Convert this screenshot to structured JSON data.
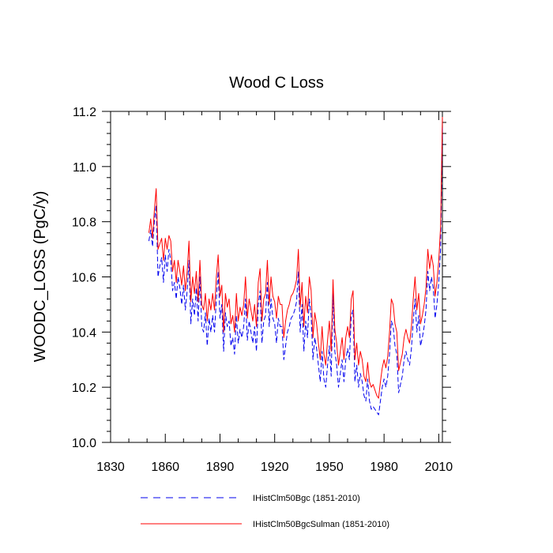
{
  "chart_data": {
    "type": "line",
    "title": "Wood C Loss",
    "ylabel": "WOODC_LOSS  (PgC/y)",
    "xlabel": "",
    "xlim": [
      1830,
      2012
    ],
    "ylim": [
      10.0,
      11.2
    ],
    "x_ticks": [
      "1830",
      "1860",
      "1890",
      "1920",
      "1950",
      "1980",
      "2010"
    ],
    "y_ticks": [
      "10.0",
      "10.2",
      "10.4",
      "10.6",
      "10.8",
      "11.0",
      "11.2"
    ],
    "grid": false,
    "legend_position": "bottom",
    "x_start": 1851,
    "series": [
      {
        "name": "IHistClm50Bgc (1851-2010)",
        "color": "#0000ee",
        "style": "dashed",
        "values": [
          10.73,
          10.77,
          10.71,
          10.8,
          10.86,
          10.6,
          10.64,
          10.67,
          10.58,
          10.68,
          10.62,
          10.7,
          10.66,
          10.55,
          10.58,
          10.52,
          10.6,
          10.56,
          10.5,
          10.57,
          10.48,
          10.55,
          10.66,
          10.43,
          10.52,
          10.46,
          10.56,
          10.44,
          10.6,
          10.42,
          10.4,
          10.47,
          10.35,
          10.45,
          10.4,
          10.46,
          10.4,
          10.52,
          10.62,
          10.45,
          10.5,
          10.33,
          10.47,
          10.42,
          10.44,
          10.35,
          10.38,
          10.32,
          10.46,
          10.36,
          10.41,
          10.38,
          10.42,
          10.52,
          10.37,
          10.44,
          10.4,
          10.36,
          10.42,
          10.33,
          10.5,
          10.55,
          10.36,
          10.44,
          10.46,
          10.58,
          10.42,
          10.52,
          10.45,
          10.43,
          10.36,
          10.45,
          10.42,
          10.42,
          10.3,
          10.35,
          10.4,
          10.42,
          10.45,
          10.46,
          10.48,
          10.51,
          10.62,
          10.4,
          10.5,
          10.33,
          10.44,
          10.38,
          10.52,
          10.46,
          10.3,
          10.38,
          10.34,
          10.28,
          10.22,
          10.33,
          10.23,
          10.2,
          10.28,
          10.35,
          10.24,
          10.54,
          10.33,
          10.28,
          10.2,
          10.25,
          10.3,
          10.22,
          10.3,
          10.34,
          10.3,
          10.46,
          10.48,
          10.22,
          10.28,
          10.2,
          10.25,
          10.22,
          10.17,
          10.15,
          10.23,
          10.15,
          10.12,
          10.13,
          10.12,
          10.11,
          10.1,
          10.15,
          10.2,
          10.23,
          10.2,
          10.24,
          10.32,
          10.44,
          10.42,
          10.35,
          10.32,
          10.18,
          10.21,
          10.24,
          10.3,
          10.33,
          10.3,
          10.28,
          10.34,
          10.44,
          10.52,
          10.4,
          10.46,
          10.35,
          10.38,
          10.42,
          10.48,
          10.62,
          10.55,
          10.6,
          10.56,
          10.45,
          10.5,
          10.58,
          10.7,
          11.15
        ]
      },
      {
        "name": "IHistClm50BgcSulman (1851-2010)",
        "color": "#ff0000",
        "style": "solid",
        "values": [
          10.76,
          10.81,
          10.74,
          10.84,
          10.92,
          10.7,
          10.72,
          10.74,
          10.66,
          10.74,
          10.7,
          10.75,
          10.73,
          10.62,
          10.66,
          10.58,
          10.66,
          10.62,
          10.57,
          10.64,
          10.55,
          10.62,
          10.73,
          10.51,
          10.6,
          10.54,
          10.62,
          10.51,
          10.66,
          10.5,
          10.48,
          10.54,
          10.44,
          10.52,
          10.48,
          10.54,
          10.48,
          10.6,
          10.68,
          10.53,
          10.57,
          10.4,
          10.54,
          10.49,
          10.52,
          10.43,
          10.46,
          10.4,
          10.54,
          10.44,
          10.49,
          10.46,
          10.5,
          10.6,
          10.45,
          10.52,
          10.48,
          10.44,
          10.5,
          10.42,
          10.58,
          10.63,
          10.44,
          10.52,
          10.54,
          10.66,
          10.5,
          10.6,
          10.53,
          10.51,
          10.45,
          10.53,
          10.5,
          10.5,
          10.38,
          10.44,
          10.48,
          10.5,
          10.53,
          10.54,
          10.56,
          10.59,
          10.7,
          10.49,
          10.58,
          10.42,
          10.53,
          10.47,
          10.6,
          10.55,
          10.38,
          10.47,
          10.43,
          10.36,
          10.3,
          10.42,
          10.32,
          10.28,
          10.37,
          10.44,
          10.33,
          10.59,
          10.41,
          10.36,
          10.28,
          10.33,
          10.38,
          10.3,
          10.38,
          10.42,
          10.38,
          10.52,
          10.55,
          10.3,
          10.36,
          10.28,
          10.33,
          10.3,
          10.24,
          10.22,
          10.29,
          10.22,
          10.2,
          10.21,
          10.19,
          10.17,
          10.16,
          10.22,
          10.27,
          10.3,
          10.27,
          10.31,
          10.4,
          10.52,
          10.5,
          10.43,
          10.4,
          10.26,
          10.29,
          10.32,
          10.38,
          10.41,
          10.38,
          10.36,
          10.42,
          10.52,
          10.6,
          10.48,
          10.54,
          10.43,
          10.46,
          10.5,
          10.56,
          10.7,
          10.63,
          10.68,
          10.64,
          10.53,
          10.58,
          10.66,
          10.78,
          11.18
        ]
      }
    ]
  }
}
